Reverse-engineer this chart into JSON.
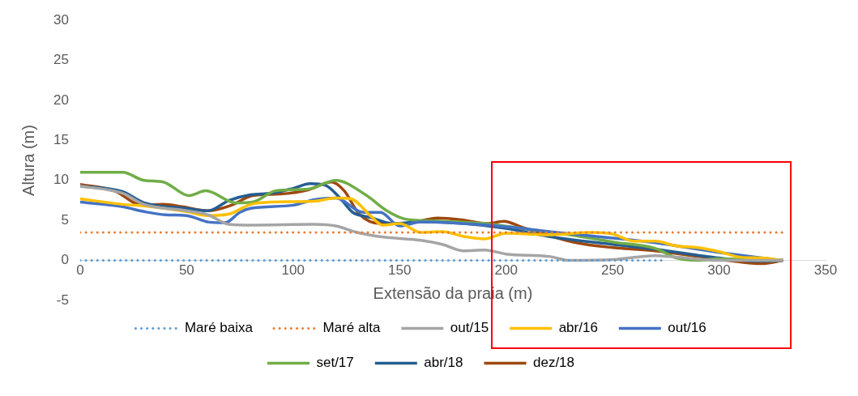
{
  "chart_data": {
    "type": "line",
    "xlabel": "Extensão da praia (m)",
    "ylabel": "Altura (m)",
    "xlim": [
      0,
      350
    ],
    "xticks": [
      0,
      50,
      100,
      150,
      200,
      250,
      300,
      350
    ],
    "ylim": [
      -5,
      30
    ],
    "yticks": [
      -5,
      0,
      5,
      10,
      15,
      20,
      25,
      30
    ],
    "legend": "bottom",
    "grid": false,
    "marker": "none",
    "series": [
      {
        "name": "Maré baixa",
        "color": "#5b9bd5",
        "line_style": "dotted",
        "x": [
          0,
          275
        ],
        "values": [
          0,
          0
        ]
      },
      {
        "name": "Maré alta",
        "color": "#ed7d31",
        "line_style": "dotted",
        "x": [
          0,
          330
        ],
        "values": [
          3.5,
          3.5
        ]
      },
      {
        "name": "out/15",
        "color": "#a5a5a5",
        "x": [
          0,
          20,
          30,
          50,
          60,
          70,
          80,
          110,
          120,
          130,
          140,
          160,
          170,
          180,
          190,
          200,
          220,
          230,
          250,
          270,
          280,
          300,
          330
        ],
        "values": [
          9.3,
          8.4,
          7.0,
          6.2,
          5.7,
          4.5,
          4.4,
          4.5,
          4.3,
          3.5,
          3.0,
          2.5,
          2.0,
          1.2,
          1.3,
          0.8,
          0.5,
          0,
          0.1,
          0.6,
          0.4,
          0,
          0
        ]
      },
      {
        "name": "abr/16",
        "color": "#ffc000",
        "x": [
          0,
          20,
          30,
          50,
          60,
          70,
          80,
          90,
          110,
          120,
          127,
          137,
          142,
          150,
          160,
          170,
          180,
          190,
          200,
          220,
          240,
          250,
          260,
          270,
          280,
          290,
          300,
          310,
          320,
          330
        ],
        "values": [
          7.7,
          7.0,
          6.8,
          6.1,
          5.6,
          5.8,
          7.0,
          7.3,
          7.4,
          7.8,
          7.7,
          5.4,
          4.4,
          4.6,
          3.5,
          3.6,
          3.0,
          2.7,
          3.4,
          3.2,
          3.5,
          3.3,
          2.4,
          2.4,
          1.8,
          1.6,
          1.1,
          0.4,
          0.3,
          0
        ]
      },
      {
        "name": "out/16",
        "color": "#4472c4",
        "x": [
          0,
          20,
          30,
          40,
          50,
          60,
          68,
          75,
          80,
          100,
          110,
          120,
          133,
          141,
          150,
          160,
          200,
          220,
          250,
          270,
          300,
          320,
          330
        ],
        "values": [
          7.3,
          6.7,
          6.1,
          5.7,
          5.6,
          4.8,
          4.7,
          6.0,
          6.5,
          6.9,
          7.6,
          7.8,
          6.0,
          6.0,
          4.3,
          4.8,
          4.2,
          3.6,
          2.8,
          2.2,
          1.0,
          0.3,
          0
        ]
      },
      {
        "name": "set/17",
        "color": "#70ad47",
        "x": [
          0,
          20,
          30,
          39,
          51,
          59,
          73,
          81,
          92,
          107,
          120,
          134,
          144,
          152,
          160,
          170,
          190,
          210,
          230,
          250,
          270,
          280,
          290,
          300,
          320,
          330
        ],
        "values": [
          11,
          11,
          10.0,
          9.8,
          8.1,
          8.7,
          7.2,
          7.3,
          8.7,
          8.9,
          10.0,
          8.2,
          6.2,
          5.2,
          5.0,
          4.9,
          4.6,
          3.9,
          3.2,
          2.3,
          1.5,
          0.3,
          0,
          0.2,
          0,
          0
        ]
      },
      {
        "name": "abr/18",
        "color": "#255e91",
        "x": [
          0,
          20,
          30,
          50,
          60,
          70,
          80,
          90,
          100,
          108,
          115,
          122,
          128,
          136,
          147,
          160,
          180,
          200,
          220,
          250,
          270,
          300,
          320,
          330
        ],
        "values": [
          9.3,
          8.6,
          7.2,
          6.5,
          6.2,
          7.5,
          8.2,
          8.4,
          9.0,
          9.6,
          9.4,
          7.8,
          6.0,
          5.4,
          4.6,
          4.8,
          4.6,
          4.0,
          3.0,
          2.0,
          1.4,
          0.3,
          -0.1,
          0
        ]
      },
      {
        "name": "dez/18",
        "color": "#9e480e",
        "x": [
          0,
          16,
          29,
          39,
          48,
          60,
          71,
          81,
          94,
          107,
          118,
          124,
          131,
          141,
          152,
          168,
          181,
          191,
          199,
          207,
          233,
          250,
          270,
          290,
          310,
          320,
          330
        ],
        "values": [
          9.5,
          8.7,
          6.9,
          7.0,
          6.7,
          6.2,
          6.9,
          8.1,
          8.3,
          8.8,
          9.8,
          8.7,
          5.8,
          4.6,
          4.6,
          5.3,
          5.0,
          4.6,
          4.9,
          4.2,
          2.2,
          1.6,
          1.2,
          0.5,
          -0.2,
          -0.4,
          0
        ]
      }
    ]
  }
}
